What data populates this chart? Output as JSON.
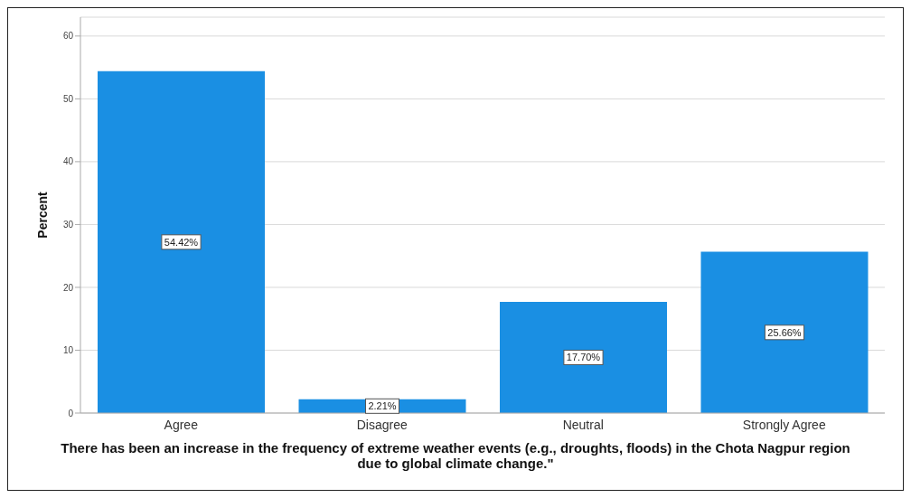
{
  "chart_data": {
    "type": "bar",
    "xlabel": "There has been an increase in the frequency of extreme weather events (e.g., droughts, floods) in the Chota Nagpur region due to global climate change.\"",
    "ylabel": "Percent",
    "categories": [
      "Agree",
      "Disagree",
      "Neutral",
      "Strongly Agree"
    ],
    "values": [
      54.42,
      2.21,
      17.7,
      25.66
    ],
    "value_labels": [
      "54.42%",
      "2.21%",
      "17.70%",
      "25.66%"
    ],
    "color": "#1a8fe3",
    "ylim": [
      0,
      63
    ],
    "yticks": [
      0,
      10,
      20,
      30,
      40,
      50,
      60
    ],
    "grid": "y",
    "legend": false
  }
}
